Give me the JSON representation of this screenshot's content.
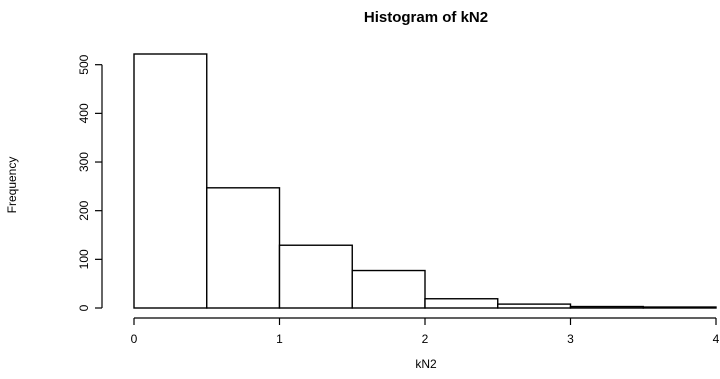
{
  "chart_data": {
    "type": "histogram",
    "title": "Histogram of kN2",
    "xlabel": "kN2",
    "ylabel": "Frequency",
    "bins": [
      {
        "start": 0.0,
        "end": 0.5,
        "count": 522
      },
      {
        "start": 0.5,
        "end": 1.0,
        "count": 247
      },
      {
        "start": 1.0,
        "end": 1.5,
        "count": 129
      },
      {
        "start": 1.5,
        "end": 2.0,
        "count": 77
      },
      {
        "start": 2.0,
        "end": 2.5,
        "count": 19
      },
      {
        "start": 2.5,
        "end": 3.0,
        "count": 8
      },
      {
        "start": 3.0,
        "end": 3.5,
        "count": 3
      },
      {
        "start": 3.5,
        "end": 4.0,
        "count": 2
      }
    ],
    "xlim": [
      0,
      4
    ],
    "ylim": [
      0,
      522
    ],
    "x_ticks": [
      0,
      1,
      2,
      3,
      4
    ],
    "x_tick_labels": [
      "0",
      "1",
      "2",
      "3",
      "4"
    ],
    "y_ticks": [
      0,
      100,
      200,
      300,
      400,
      500
    ],
    "y_tick_labels": [
      "0",
      "100",
      "200",
      "300",
      "400",
      "500"
    ],
    "grid": false,
    "legend": "none",
    "colors": {
      "bar_fill": "#ffffff",
      "bar_stroke": "#000000"
    }
  }
}
